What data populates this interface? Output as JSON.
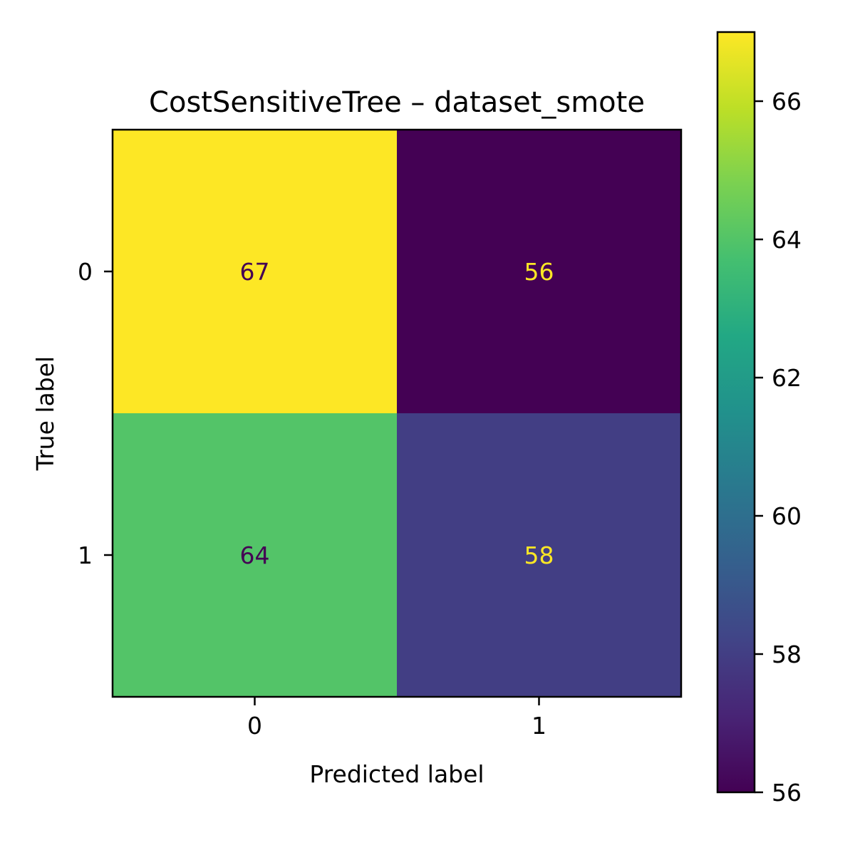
{
  "chart_data": {
    "type": "heatmap",
    "title": "CostSensitiveTree – dataset_smote",
    "xlabel": "Predicted label",
    "ylabel": "True label",
    "x_categories": [
      "0",
      "1"
    ],
    "y_categories": [
      "0",
      "1"
    ],
    "values": [
      [
        67,
        56
      ],
      [
        64,
        58
      ]
    ],
    "colormap": "viridis",
    "colorbar": {
      "range": [
        56,
        67
      ],
      "ticks": [
        56,
        58,
        60,
        62,
        64,
        66
      ],
      "tick_labels": [
        "56",
        "58",
        "60",
        "62",
        "64",
        "66"
      ]
    },
    "grid": false
  },
  "colors": {
    "cell_text_dark": "#440154",
    "cell_text_light": "#fde725",
    "axis_line": "#000000"
  }
}
